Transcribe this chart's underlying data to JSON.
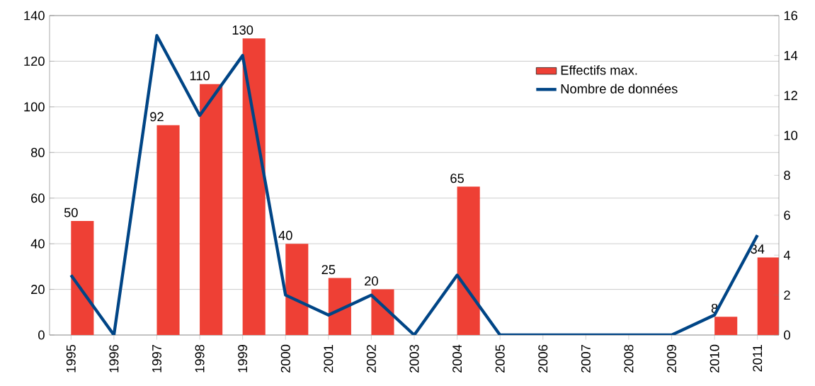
{
  "chart_data": {
    "type": "bar",
    "categories": [
      "1995",
      "1996",
      "1997",
      "1998",
      "1999",
      "2000",
      "2001",
      "2002",
      "2003",
      "2004",
      "2005",
      "2006",
      "2007",
      "2008",
      "2009",
      "2010",
      "2011"
    ],
    "series": [
      {
        "name": "Effectifs max.",
        "color": "#ee4035",
        "values": [
          50,
          null,
          92,
          110,
          130,
          40,
          25,
          20,
          null,
          65,
          null,
          null,
          null,
          null,
          null,
          8,
          34
        ],
        "value_labels": [
          "50",
          null,
          "92",
          "110",
          "130",
          "40",
          "25",
          "20",
          null,
          "65",
          null,
          null,
          null,
          null,
          null,
          "8",
          "34"
        ]
      },
      {
        "name": "Nombre de données",
        "type": "line",
        "axis": "y2",
        "color": "#004586",
        "values": [
          3,
          0,
          15,
          11,
          14,
          2,
          1,
          2,
          0,
          3,
          0,
          0,
          0,
          0,
          0,
          1,
          5
        ]
      }
    ],
    "ylim": [
      0,
      140
    ],
    "yticks": [
      0,
      20,
      40,
      60,
      80,
      100,
      120,
      140
    ],
    "y2lim": [
      0,
      16
    ],
    "y2ticks": [
      0,
      2,
      4,
      6,
      8,
      10,
      12,
      14,
      16
    ],
    "grid": "y",
    "legend": "right",
    "marker": "none",
    "line_style": "solid"
  }
}
